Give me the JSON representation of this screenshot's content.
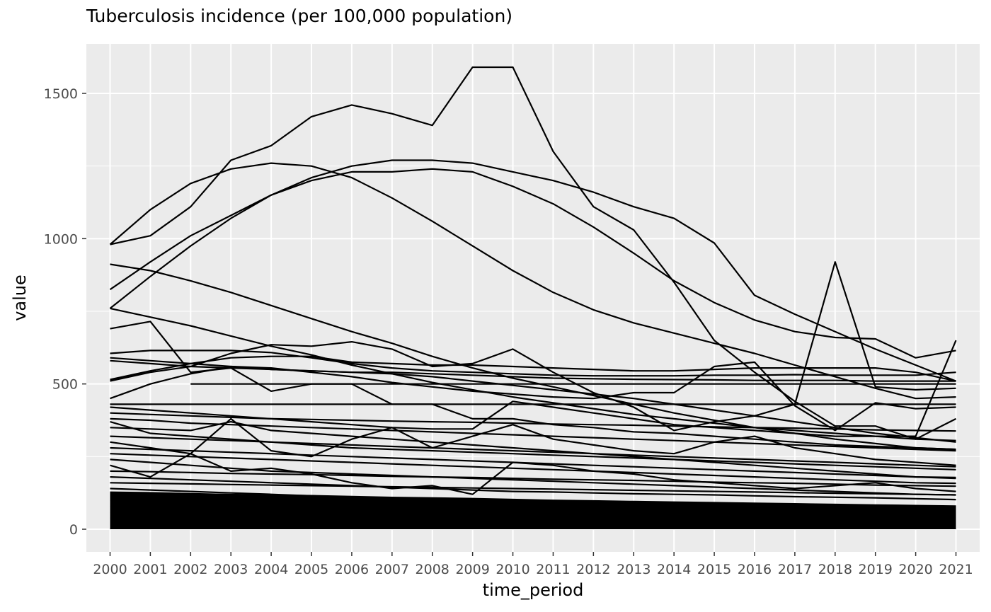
{
  "chart_data": {
    "type": "line",
    "title": "Tuberculosis incidence (per 100,000 population)",
    "xlabel": "time_period",
    "ylabel": "value",
    "x": [
      2000,
      2001,
      2002,
      2003,
      2004,
      2005,
      2006,
      2007,
      2008,
      2009,
      2010,
      2011,
      2012,
      2013,
      2014,
      2015,
      2016,
      2017,
      2018,
      2019,
      2020,
      2021
    ],
    "ylim": [
      -80,
      1660
    ],
    "yticks": [
      0,
      500,
      1000,
      1500
    ],
    "grid": true,
    "legend": "none",
    "line_color": "#000000",
    "panel_color": "#ebebeb",
    "series": [
      {
        "values": [
          980,
          1100,
          1190,
          1240,
          1260,
          1250,
          1210,
          1140,
          1060,
          975,
          890,
          815,
          755,
          710,
          675,
          640,
          605,
          565,
          525,
          485,
          450,
          455
        ]
      },
      {
        "values": [
          980,
          1010,
          1110,
          1270,
          1320,
          1420,
          1460,
          1430,
          1390,
          1590,
          1590,
          1300,
          1110,
          1030,
          850,
          650,
          540,
          440,
          355,
          355,
          310,
          380
        ]
      },
      {
        "values": [
          825,
          920,
          1010,
          1080,
          1150,
          1210,
          1250,
          1270,
          1270,
          1260,
          1230,
          1200,
          1160,
          1110,
          1070,
          985,
          805,
          740,
          680,
          620,
          565,
          510
        ]
      },
      {
        "values": [
          760,
          870,
          975,
          1070,
          1150,
          1200,
          1230,
          1230,
          1240,
          1230,
          1180,
          1120,
          1040,
          950,
          855,
          780,
          720,
          680,
          660,
          655,
          590,
          615
        ]
      },
      {
        "values": [
          912,
          890,
          855,
          815,
          770,
          725,
          680,
          640,
          595,
          555,
          520,
          490,
          460,
          430,
          400,
          375,
          350,
          330,
          310,
          295,
          280,
          275
        ]
      },
      {
        "values": [
          760,
          730,
          700,
          665,
          630,
          600,
          565,
          535,
          505,
          480,
          455,
          435,
          415,
          395,
          380,
          365,
          350,
          340,
          330,
          320,
          310,
          305
        ]
      },
      {
        "values": [
          690,
          715,
          540,
          555,
          475,
          500,
          500,
          430,
          430,
          380,
          380,
          360,
          350,
          335,
          330,
          320,
          310,
          300,
          290,
          285,
          280,
          275
        ]
      },
      {
        "values": [
          605,
          615,
          615,
          615,
          608,
          590,
          570,
          555,
          545,
          540,
          535,
          530,
          528,
          528,
          528,
          530,
          530,
          532,
          530,
          530,
          530,
          540
        ]
      },
      {
        "values": [
          590,
          580,
          570,
          560,
          550,
          545,
          540,
          535,
          525,
          510,
          495,
          480,
          465,
          450,
          430,
          410,
          390,
          370,
          350,
          330,
          315,
          300
        ]
      },
      {
        "values": [
          580,
          570,
          560,
          555,
          550,
          545,
          540,
          540,
          535,
          530,
          525,
          520,
          518,
          516,
          515,
          514,
          512,
          512,
          512,
          510,
          510,
          510
        ]
      },
      {
        "values": [
          515,
          545,
          570,
          590,
          595,
          595,
          575,
          570,
          565,
          565,
          560,
          555,
          550,
          545,
          545,
          550,
          555,
          555,
          555,
          555,
          540,
          510
        ]
      },
      {
        "values": [
          510,
          540,
          560,
          605,
          635,
          630,
          645,
          620,
          560,
          570,
          620,
          540,
          470,
          420,
          340,
          370,
          390,
          430,
          920,
          490,
          480,
          485
        ]
      },
      {
        "values": [
          450,
          500,
          535,
          560,
          555,
          540,
          525,
          505,
          490,
          475,
          465,
          455,
          450,
          470,
          470,
          560,
          575,
          425,
          340,
          435,
          415,
          420
        ]
      },
      {
        "values": [
          null,
          null,
          500,
          500,
          500,
          500,
          500,
          500,
          500,
          500,
          500,
          500,
          500,
          500,
          500,
          500,
          500,
          500,
          500,
          500,
          500,
          500
        ]
      },
      {
        "values": [
          430,
          430,
          430,
          430,
          430,
          430,
          430,
          430,
          430,
          430,
          430,
          430,
          430,
          430,
          430,
          430,
          430,
          430,
          430,
          430,
          430,
          430
        ]
      },
      {
        "values": [
          420,
          410,
          400,
          390,
          380,
          370,
          360,
          350,
          345,
          345,
          440,
          420,
          400,
          380,
          360,
          350,
          340,
          330,
          320,
          320,
          320,
          650
        ]
      },
      {
        "values": [
          400,
          395,
          390,
          385,
          380,
          378,
          375,
          372,
          370,
          368,
          365,
          362,
          360,
          358,
          355,
          352,
          350,
          348,
          345,
          342,
          340,
          338
        ]
      },
      {
        "values": [
          380,
          375,
          365,
          360,
          355,
          350,
          345,
          340,
          335,
          330,
          325,
          320,
          315,
          310,
          305,
          300,
          295,
          290,
          285,
          280,
          275,
          270
        ]
      },
      {
        "values": [
          370,
          330,
          320,
          310,
          300,
          290,
          280,
          275,
          270,
          265,
          260,
          255,
          250,
          245,
          240,
          235,
          230,
          225,
          220,
          215,
          210,
          205
        ]
      },
      {
        "values": [
          350,
          345,
          340,
          370,
          340,
          330,
          320,
          310,
          300,
          290,
          280,
          270,
          260,
          250,
          240,
          230,
          220,
          210,
          200,
          190,
          180,
          175
        ]
      },
      {
        "values": [
          320,
          315,
          310,
          305,
          300,
          295,
          290,
          285,
          280,
          275,
          270,
          265,
          260,
          255,
          250,
          245,
          240,
          235,
          230,
          225,
          220,
          215
        ]
      },
      {
        "values": [
          300,
          280,
          260,
          380,
          270,
          250,
          310,
          350,
          280,
          320,
          360,
          310,
          290,
          270,
          260,
          300,
          320,
          280,
          260,
          240,
          230,
          220
        ]
      },
      {
        "values": [
          280,
          275,
          270,
          265,
          260,
          255,
          250,
          245,
          240,
          235,
          230,
          225,
          220,
          215,
          210,
          205,
          200,
          195,
          190,
          185,
          180,
          178
        ]
      },
      {
        "values": [
          260,
          255,
          250,
          245,
          240,
          235,
          230,
          225,
          220,
          215,
          210,
          205,
          200,
          195,
          190,
          185,
          180,
          175,
          170,
          165,
          160,
          158
        ]
      },
      {
        "values": [
          240,
          230,
          220,
          210,
          200,
          195,
          190,
          185,
          180,
          175,
          170,
          165,
          160,
          155,
          150,
          145,
          140,
          135,
          130,
          125,
          120,
          118
        ]
      },
      {
        "values": [
          220,
          180,
          260,
          200,
          210,
          190,
          160,
          140,
          150,
          120,
          230,
          220,
          200,
          190,
          170,
          160,
          150,
          140,
          150,
          160,
          140,
          130
        ]
      },
      {
        "values": [
          200,
          198,
          195,
          192,
          190,
          188,
          185,
          182,
          180,
          178,
          175,
          172,
          170,
          168,
          165,
          162,
          160,
          158,
          155,
          152,
          150,
          148
        ]
      },
      {
        "values": [
          180,
          175,
          170,
          165,
          160,
          155,
          150,
          145,
          140,
          135,
          130,
          128,
          125,
          122,
          120,
          118,
          115,
          112,
          110,
          108,
          105,
          102
        ]
      },
      {
        "values": [
          160,
          158,
          156,
          154,
          152,
          150,
          148,
          146,
          144,
          142,
          140,
          138,
          136,
          134,
          132,
          130,
          128,
          126,
          124,
          122,
          120,
          118
        ]
      },
      {
        "values": [
          140,
          135,
          130,
          125,
          120,
          115,
          110,
          105,
          100,
          98,
          95,
          92,
          90,
          88,
          85,
          82,
          80,
          78,
          75,
          72,
          70,
          68
        ]
      },
      {
        "values": [
          120,
          118,
          116,
          114,
          112,
          110,
          108,
          106,
          104,
          102,
          100,
          98,
          96,
          94,
          92,
          90,
          88,
          86,
          84,
          82,
          80,
          78
        ]
      },
      {
        "values": [
          100,
          98,
          96,
          94,
          92,
          90,
          88,
          86,
          84,
          82,
          80,
          78,
          76,
          74,
          72,
          70,
          68,
          66,
          64,
          62,
          60,
          58
        ]
      },
      {
        "values": [
          80,
          78,
          76,
          74,
          72,
          70,
          68,
          66,
          64,
          62,
          60,
          58,
          56,
          54,
          52,
          50,
          48,
          46,
          44,
          42,
          40,
          38
        ]
      },
      {
        "values": [
          60,
          58,
          56,
          54,
          52,
          50,
          48,
          46,
          44,
          42,
          40,
          38,
          36,
          34,
          32,
          30,
          28,
          26,
          24,
          22,
          20,
          18
        ]
      },
      {
        "values": [
          40,
          39,
          38,
          37,
          36,
          35,
          34,
          33,
          32,
          31,
          30,
          29,
          28,
          27,
          26,
          25,
          24,
          23,
          22,
          21,
          20,
          19
        ]
      },
      {
        "values": [
          20,
          20,
          19,
          19,
          18,
          18,
          17,
          17,
          16,
          16,
          15,
          15,
          14,
          14,
          13,
          13,
          12,
          12,
          11,
          11,
          10,
          10
        ]
      }
    ],
    "dense_band": {
      "low": [
        0,
        0,
        0,
        0,
        0,
        0,
        0,
        0,
        0,
        0,
        0,
        0,
        0,
        0,
        0,
        0,
        0,
        0,
        0,
        0,
        0,
        0
      ],
      "high": [
        130,
        128,
        125,
        122,
        120,
        118,
        115,
        112,
        110,
        108,
        105,
        102,
        100,
        98,
        96,
        94,
        92,
        90,
        88,
        86,
        84,
        82
      ]
    }
  }
}
